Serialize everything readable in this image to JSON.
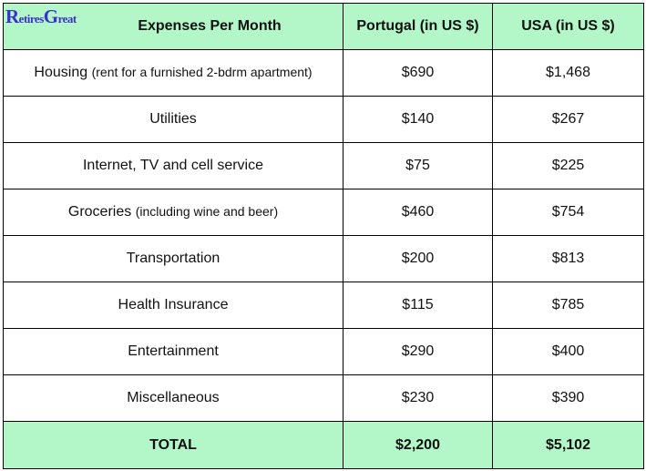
{
  "logo": {
    "r": "R",
    "etires": "etires",
    "g": "G",
    "reat": "reat",
    "color": "#3b2fd0"
  },
  "header": {
    "category": "Expenses Per Month",
    "portugal": "Portugal (in US $)",
    "usa": "USA (in US $)",
    "bg_color": "#b3f7c9"
  },
  "rows": [
    {
      "label": "Housing",
      "note": "(rent for a furnished 2-bdrm apartment)",
      "portugal": "$690",
      "usa": "$1,468"
    },
    {
      "label": "Utilities",
      "note": "",
      "portugal": "$140",
      "usa": "$267"
    },
    {
      "label": "Internet, TV and cell service",
      "note": "",
      "portugal": "$75",
      "usa": "$225"
    },
    {
      "label": "Groceries",
      "note": "(including wine and beer)",
      "portugal": "$460",
      "usa": "$754"
    },
    {
      "label": "Transportation",
      "note": "",
      "portugal": "$200",
      "usa": "$813"
    },
    {
      "label": "Health Insurance",
      "note": "",
      "portugal": "$115",
      "usa": "$785"
    },
    {
      "label": "Entertainment",
      "note": "",
      "portugal": "$290",
      "usa": "$400"
    },
    {
      "label": "Miscellaneous",
      "note": "",
      "portugal": "$230",
      "usa": "$390"
    }
  ],
  "total": {
    "label": "TOTAL",
    "portugal": "$2,200",
    "usa": "$5,102"
  }
}
